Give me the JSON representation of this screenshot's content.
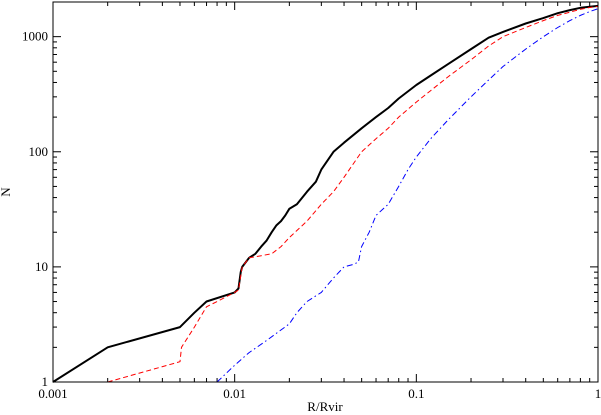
{
  "chart_data": {
    "type": "line",
    "title": "",
    "xlabel": "R/Rvir",
    "ylabel": "N",
    "xscale": "log",
    "yscale": "log",
    "xlim": [
      0.001,
      1
    ],
    "ylim": [
      1,
      2000
    ],
    "x_ticks": [
      {
        "value": 0.001,
        "label": "0.001"
      },
      {
        "value": 0.01,
        "label": "0.01"
      },
      {
        "value": 0.1,
        "label": "0.1"
      },
      {
        "value": 1,
        "label": "1"
      }
    ],
    "y_ticks": [
      {
        "value": 1,
        "label": "1"
      },
      {
        "value": 10,
        "label": "10"
      },
      {
        "value": 100,
        "label": "100"
      },
      {
        "value": 1000,
        "label": "1000"
      }
    ],
    "grid": false,
    "legend": "none",
    "series": [
      {
        "color": "#000000",
        "style": "solid",
        "points": [
          [
            0.001,
            1
          ],
          [
            0.002,
            2
          ],
          [
            0.005,
            3
          ],
          [
            0.006,
            4
          ],
          [
            0.007,
            5
          ],
          [
            0.01,
            6
          ],
          [
            0.0105,
            6.5
          ],
          [
            0.0108,
            9
          ],
          [
            0.011,
            10
          ],
          [
            0.012,
            12
          ],
          [
            0.013,
            13
          ],
          [
            0.014,
            15
          ],
          [
            0.015,
            17
          ],
          [
            0.016,
            20
          ],
          [
            0.017,
            23
          ],
          [
            0.018,
            25
          ],
          [
            0.019,
            28
          ],
          [
            0.02,
            32
          ],
          [
            0.022,
            35
          ],
          [
            0.025,
            45
          ],
          [
            0.028,
            55
          ],
          [
            0.03,
            70
          ],
          [
            0.035,
            100
          ],
          [
            0.04,
            120
          ],
          [
            0.05,
            160
          ],
          [
            0.06,
            200
          ],
          [
            0.07,
            240
          ],
          [
            0.08,
            290
          ],
          [
            0.1,
            380
          ],
          [
            0.12,
            460
          ],
          [
            0.15,
            580
          ],
          [
            0.2,
            780
          ],
          [
            0.25,
            980
          ],
          [
            0.3,
            1100
          ],
          [
            0.4,
            1300
          ],
          [
            0.5,
            1450
          ],
          [
            0.6,
            1600
          ],
          [
            0.7,
            1700
          ],
          [
            0.8,
            1780
          ],
          [
            0.9,
            1820
          ],
          [
            1.0,
            1850
          ]
        ]
      },
      {
        "color": "#ff0000",
        "style": "dashed",
        "points": [
          [
            0.002,
            1
          ],
          [
            0.005,
            1.5
          ],
          [
            0.0051,
            2
          ],
          [
            0.006,
            3
          ],
          [
            0.007,
            4.5
          ],
          [
            0.008,
            5
          ],
          [
            0.01,
            6
          ],
          [
            0.0105,
            6.3
          ],
          [
            0.011,
            10
          ],
          [
            0.012,
            12
          ],
          [
            0.014,
            12.5
          ],
          [
            0.016,
            13
          ],
          [
            0.018,
            15
          ],
          [
            0.02,
            18
          ],
          [
            0.025,
            25
          ],
          [
            0.03,
            35
          ],
          [
            0.035,
            45
          ],
          [
            0.04,
            60
          ],
          [
            0.05,
            100
          ],
          [
            0.06,
            130
          ],
          [
            0.07,
            160
          ],
          [
            0.08,
            200
          ],
          [
            0.1,
            270
          ],
          [
            0.12,
            340
          ],
          [
            0.15,
            450
          ],
          [
            0.2,
            630
          ],
          [
            0.25,
            830
          ],
          [
            0.3,
            1000
          ],
          [
            0.4,
            1200
          ],
          [
            0.5,
            1380
          ],
          [
            0.6,
            1530
          ],
          [
            0.7,
            1630
          ],
          [
            0.8,
            1730
          ],
          [
            0.9,
            1790
          ],
          [
            1.0,
            1830
          ]
        ]
      },
      {
        "color": "#0000ff",
        "style": "dash-dot",
        "points": [
          [
            0.008,
            1
          ],
          [
            0.01,
            1.4
          ],
          [
            0.012,
            1.8
          ],
          [
            0.015,
            2.3
          ],
          [
            0.02,
            3.2
          ],
          [
            0.022,
            4
          ],
          [
            0.025,
            5
          ],
          [
            0.03,
            6
          ],
          [
            0.035,
            8
          ],
          [
            0.04,
            10
          ],
          [
            0.045,
            10.5
          ],
          [
            0.048,
            11
          ],
          [
            0.05,
            15
          ],
          [
            0.055,
            20
          ],
          [
            0.06,
            28
          ],
          [
            0.07,
            35
          ],
          [
            0.08,
            50
          ],
          [
            0.09,
            70
          ],
          [
            0.1,
            90
          ],
          [
            0.12,
            130
          ],
          [
            0.15,
            190
          ],
          [
            0.2,
            300
          ],
          [
            0.25,
            420
          ],
          [
            0.3,
            550
          ],
          [
            0.4,
            780
          ],
          [
            0.5,
            1000
          ],
          [
            0.6,
            1200
          ],
          [
            0.7,
            1380
          ],
          [
            0.8,
            1530
          ],
          [
            0.9,
            1650
          ],
          [
            1.0,
            1750
          ]
        ]
      }
    ]
  }
}
